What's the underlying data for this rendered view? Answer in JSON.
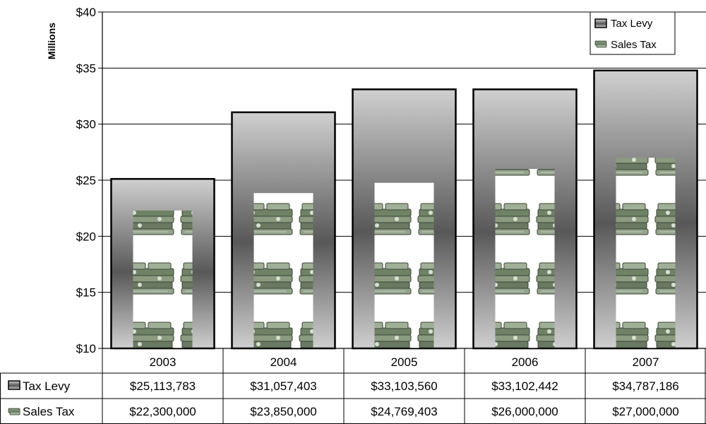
{
  "chart_data": {
    "type": "bar",
    "title": "",
    "xlabel": "",
    "ylabel": "Millions",
    "ylim": [
      10,
      40
    ],
    "y_ticks": [
      "$10",
      "$15",
      "$20",
      "$25",
      "$30",
      "$35",
      "$40"
    ],
    "y_tick_values": [
      10,
      15,
      20,
      25,
      30,
      35,
      40
    ],
    "grid": true,
    "legend_position": "top-right",
    "categories": [
      "2003",
      "2004",
      "2005",
      "2006",
      "2007"
    ],
    "series": [
      {
        "name": "Tax Levy",
        "values": [
          25.113783,
          31.057403,
          33.10356,
          33.102442,
          34.787186
        ],
        "value_labels": [
          "$25,113,783",
          "$31,057,403",
          "$33,103,560",
          "$33,102,442",
          "$34,787,186"
        ],
        "style": "gray-gradient"
      },
      {
        "name": "Sales Tax",
        "values": [
          22.3,
          23.85,
          24.769403,
          26.0,
          27.0
        ],
        "value_labels": [
          "$22,300,000",
          "$23,850,000",
          "$24,769,403",
          "$26,000,000",
          "$27,000,000"
        ],
        "style": "money-stack-picture"
      }
    ],
    "data_table": true
  },
  "colors": {
    "levy_light": "#d2d2d2",
    "levy_dark": "#555555",
    "money_green": "#7c8f74",
    "outline": "#000000"
  }
}
